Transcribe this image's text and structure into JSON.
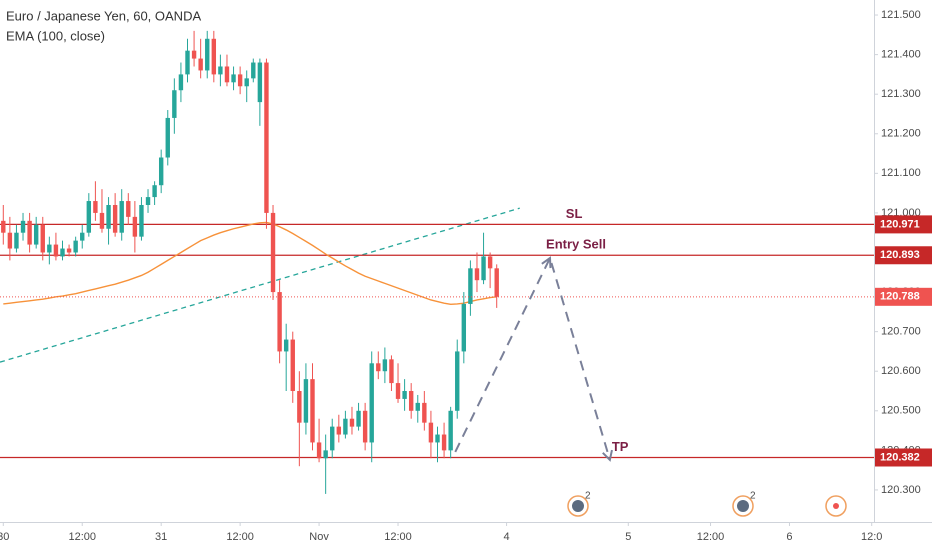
{
  "chart_data": {
    "type": "candlestick",
    "title": "Euro / Japanese Yen, 60, OANDA",
    "subtitle": "EMA (100, close)",
    "xlim": [
      -0.5,
      132.5
    ],
    "ylim": [
      120.219,
      121.538
    ],
    "xticks": [
      {
        "value": 0,
        "label": "30"
      },
      {
        "value": 12,
        "label": "12:00"
      },
      {
        "value": 24,
        "label": "31"
      },
      {
        "value": 36,
        "label": "12:00"
      },
      {
        "value": 48,
        "label": "Nov"
      },
      {
        "value": 60,
        "label": "12:00"
      },
      {
        "value": 76.5,
        "label": "4"
      },
      {
        "value": 95,
        "label": "5"
      },
      {
        "value": 107.5,
        "label": "12:00"
      },
      {
        "value": 119.5,
        "label": "6"
      },
      {
        "value": 132,
        "label": "12:0"
      }
    ],
    "yticks": [
      {
        "value": 120.3,
        "label": "120.300"
      },
      {
        "value": 120.4,
        "label": "120.400"
      },
      {
        "value": 120.5,
        "label": "120.500"
      },
      {
        "value": 120.6,
        "label": "120.600"
      },
      {
        "value": 120.7,
        "label": "120.700"
      },
      {
        "value": 120.8,
        "label": "120.800"
      },
      {
        "value": 120.9,
        "label": "120.900"
      },
      {
        "value": 121.0,
        "label": "121.000"
      },
      {
        "value": 121.1,
        "label": "121.100"
      },
      {
        "value": 121.2,
        "label": "121.200"
      },
      {
        "value": 121.3,
        "label": "121.300"
      },
      {
        "value": 121.4,
        "label": "121.400"
      },
      {
        "value": 121.5,
        "label": "121.500"
      }
    ],
    "up_color": "#26a69a",
    "down_color": "#ef5350",
    "ema_color": "#f7923a",
    "open": [
      120.98,
      120.95,
      120.91,
      120.95,
      120.98,
      120.92,
      120.97,
      120.9,
      120.92,
      120.89,
      120.91,
      120.9,
      120.93,
      120.95,
      121.03,
      121.0,
      120.96,
      121.02,
      120.95,
      121.03,
      120.99,
      120.94,
      121.02,
      121.04,
      121.07,
      121.14,
      121.24,
      121.31,
      121.35,
      121.41,
      121.39,
      121.36,
      121.44,
      121.35,
      121.37,
      121.33,
      121.35,
      121.32,
      121.34,
      121.28,
      121.38,
      121.0,
      120.8,
      120.65,
      120.68,
      120.55,
      120.47,
      120.58,
      120.42,
      120.38,
      120.4,
      120.46,
      120.44,
      120.48,
      120.46,
      120.5,
      120.42,
      120.62,
      120.6,
      120.63,
      120.57,
      120.53,
      120.55,
      120.5,
      120.52,
      120.47,
      120.42,
      120.44,
      120.4,
      120.5,
      120.65,
      120.77,
      120.86,
      120.83,
      120.89,
      120.86
    ],
    "high": [
      121.02,
      120.99,
      120.97,
      121.0,
      121.0,
      120.99,
      120.99,
      120.94,
      120.95,
      120.93,
      120.92,
      120.94,
      120.97,
      121.05,
      121.08,
      121.06,
      121.04,
      121.05,
      121.06,
      121.05,
      121.03,
      121.04,
      121.06,
      121.08,
      121.16,
      121.26,
      121.34,
      121.38,
      121.44,
      121.46,
      121.44,
      121.46,
      121.46,
      121.4,
      121.4,
      121.37,
      121.37,
      121.36,
      121.39,
      121.39,
      121.39,
      121.02,
      120.83,
      120.72,
      120.7,
      120.6,
      120.62,
      120.62,
      120.48,
      120.44,
      120.48,
      120.49,
      120.5,
      120.51,
      120.52,
      120.52,
      120.65,
      120.65,
      120.66,
      120.64,
      120.62,
      120.58,
      120.57,
      120.54,
      120.55,
      120.5,
      120.46,
      120.47,
      120.51,
      120.68,
      120.8,
      120.88,
      120.9,
      120.95,
      120.9,
      120.87
    ],
    "low": [
      120.92,
      120.88,
      120.9,
      120.93,
      120.9,
      120.91,
      120.88,
      120.87,
      120.88,
      120.88,
      120.89,
      120.89,
      120.91,
      120.94,
      120.98,
      120.95,
      120.92,
      120.94,
      120.93,
      120.97,
      120.9,
      120.93,
      121.0,
      121.02,
      121.05,
      121.12,
      121.2,
      121.28,
      121.33,
      121.37,
      121.34,
      121.34,
      121.33,
      121.32,
      121.32,
      121.31,
      121.3,
      121.28,
      121.33,
      121.22,
      120.96,
      120.78,
      120.62,
      120.55,
      120.52,
      120.36,
      120.44,
      120.4,
      120.37,
      120.29,
      120.38,
      120.42,
      120.43,
      120.44,
      120.45,
      120.4,
      120.37,
      120.58,
      120.57,
      120.55,
      120.52,
      120.5,
      120.48,
      120.47,
      120.45,
      120.38,
      120.37,
      120.38,
      120.38,
      120.48,
      120.62,
      120.74,
      120.8,
      120.82,
      120.81,
      120.76
    ],
    "close": [
      120.95,
      120.91,
      120.95,
      120.98,
      120.92,
      120.97,
      120.9,
      120.92,
      120.89,
      120.91,
      120.9,
      120.93,
      120.95,
      121.03,
      121.0,
      120.96,
      121.02,
      120.95,
      121.03,
      120.99,
      120.94,
      121.02,
      121.04,
      121.07,
      121.14,
      121.24,
      121.31,
      121.35,
      121.41,
      121.39,
      121.36,
      121.44,
      121.35,
      121.37,
      121.33,
      121.35,
      121.32,
      121.34,
      121.38,
      121.38,
      121.0,
      120.8,
      120.65,
      120.68,
      120.55,
      120.47,
      120.58,
      120.42,
      120.38,
      120.4,
      120.46,
      120.44,
      120.48,
      120.46,
      120.5,
      120.42,
      120.62,
      120.6,
      120.63,
      120.57,
      120.53,
      120.55,
      120.5,
      120.52,
      120.47,
      120.42,
      120.44,
      120.4,
      120.5,
      120.65,
      120.77,
      120.86,
      120.83,
      120.89,
      120.86,
      120.788
    ],
    "ema": [
      120.77,
      120.772,
      120.774,
      120.776,
      120.778,
      120.78,
      120.782,
      120.785,
      120.788,
      120.79,
      120.793,
      120.796,
      120.8,
      120.804,
      120.808,
      120.812,
      120.816,
      120.82,
      120.825,
      120.83,
      120.836,
      120.842,
      120.85,
      120.86,
      120.87,
      120.88,
      120.89,
      120.9,
      120.91,
      120.92,
      120.93,
      120.937,
      120.944,
      120.95,
      120.955,
      120.96,
      120.964,
      120.968,
      120.972,
      120.975,
      120.976,
      120.972,
      120.965,
      120.957,
      120.948,
      120.938,
      120.928,
      120.918,
      120.907,
      120.896,
      120.886,
      120.876,
      120.866,
      120.857,
      120.848,
      120.84,
      120.834,
      120.828,
      120.822,
      120.816,
      120.81,
      120.804,
      120.798,
      120.792,
      120.786,
      120.78,
      120.776,
      120.772,
      120.769,
      120.77,
      120.772,
      120.776,
      120.78,
      120.783,
      120.786,
      120.788
    ],
    "levels": [
      {
        "name": "SL",
        "value": 120.971
      },
      {
        "name": "Entry Sell",
        "value": 120.893
      },
      {
        "name": "TP",
        "value": 120.382
      }
    ],
    "level_color": "#c62828",
    "trend_line": {
      "color": "#26a69a",
      "x": [
        -0.5,
        78.5
      ],
      "y": [
        120.623,
        121.012
      ]
    },
    "arrow": {
      "color": "#7a8099",
      "x": [
        68.7,
        83.1,
        92.2
      ],
      "y": [
        120.396,
        120.886,
        120.376
      ]
    },
    "events": [
      "2",
      "2"
    ]
  }
}
